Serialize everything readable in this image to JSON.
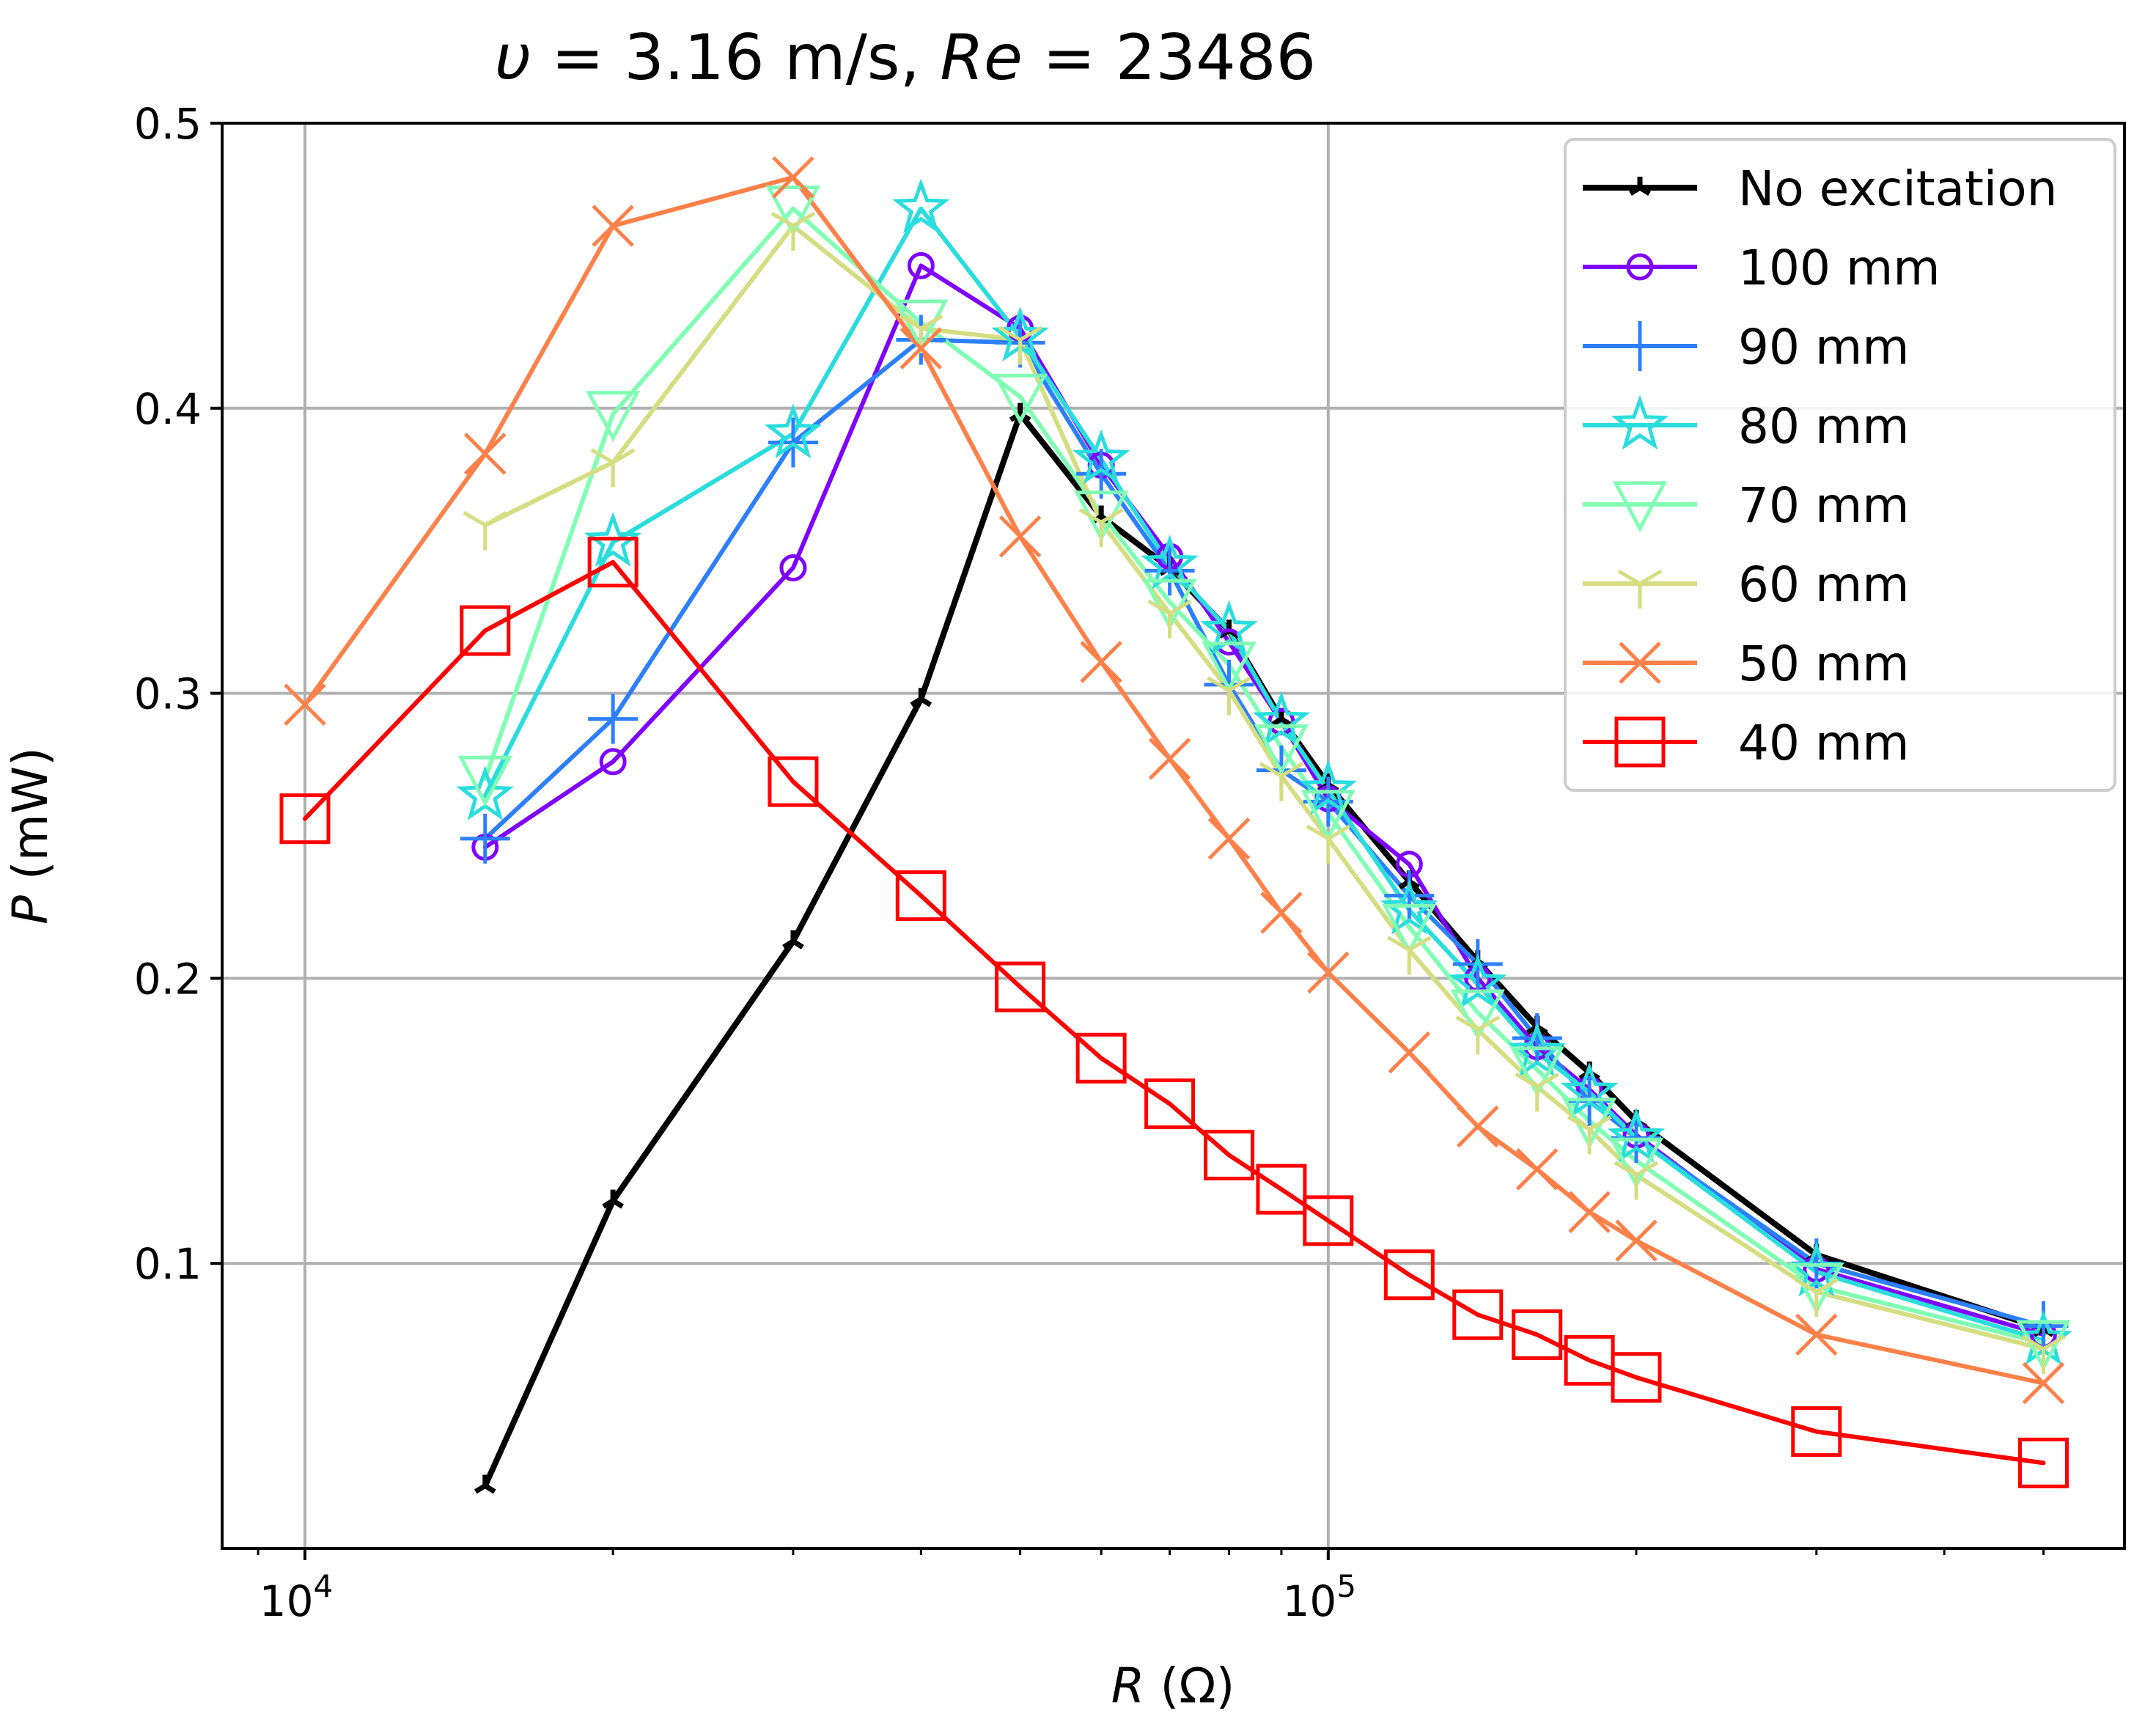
{
  "chart_data": {
    "type": "line",
    "title_parts": [
      {
        "text": "υ",
        "italic": true
      },
      {
        "text": " = 3.16 m/s, ",
        "italic": false
      },
      {
        "text": "Re",
        "italic": true
      },
      {
        "text": " = 23486",
        "italic": false
      }
    ],
    "xlabel": {
      "var": "R",
      "unit": " (Ω)"
    },
    "ylabel": {
      "var": "P",
      "unit": " (mW)"
    },
    "xscale": "log",
    "xlim": [
      8300,
      600000
    ],
    "ylim": [
      0,
      0.5
    ],
    "yticks": [
      {
        "value": 0.1,
        "label": "0.1"
      },
      {
        "value": 0.2,
        "label": "0.2"
      },
      {
        "value": 0.3,
        "label": "0.3"
      },
      {
        "value": 0.4,
        "label": "0.4"
      },
      {
        "value": 0.5,
        "label": "0.5"
      }
    ],
    "xticks_major": [
      {
        "value": 10000,
        "base": "10",
        "exp": "4"
      },
      {
        "value": 100000,
        "base": "10",
        "exp": "5"
      }
    ],
    "xticks_minor": [
      9000,
      20000,
      30000,
      40000,
      50000,
      60000,
      70000,
      80000,
      90000,
      200000,
      300000,
      400000,
      500000
    ],
    "grid": true,
    "legend_position": "top-right",
    "series": [
      {
        "name": "No excitation",
        "color": "#000000",
        "marker": "tri_down",
        "linewidth": "thick",
        "x": [
          15000,
          20000,
          30000,
          40000,
          50000,
          60000,
          70000,
          80000,
          90000,
          100000,
          120000,
          140000,
          160000,
          180000,
          200000,
          300000,
          500000
        ],
        "y": [
          0.022,
          0.122,
          0.213,
          0.298,
          0.398,
          0.362,
          0.344,
          0.322,
          0.291,
          0.268,
          0.234,
          0.206,
          0.183,
          0.167,
          0.15,
          0.103,
          0.077
        ]
      },
      {
        "name": "100 mm",
        "color": "#8000ff",
        "marker": "circle",
        "x": [
          15000,
          20000,
          30000,
          40000,
          50000,
          60000,
          70000,
          80000,
          90000,
          100000,
          120000,
          140000,
          160000,
          180000,
          200000,
          300000,
          500000
        ],
        "y": [
          0.246,
          0.276,
          0.344,
          0.45,
          0.428,
          0.38,
          0.348,
          0.318,
          0.29,
          0.263,
          0.24,
          0.2,
          0.176,
          0.161,
          0.145,
          0.098,
          0.075
        ]
      },
      {
        "name": "90 mm",
        "color": "#2c7fff",
        "marker": "plus",
        "x": [
          15000,
          20000,
          30000,
          40000,
          50000,
          60000,
          70000,
          80000,
          90000,
          100000,
          120000,
          140000,
          160000,
          180000,
          200000,
          300000,
          500000
        ],
        "y": [
          0.249,
          0.291,
          0.388,
          0.424,
          0.423,
          0.377,
          0.343,
          0.303,
          0.273,
          0.262,
          0.229,
          0.205,
          0.179,
          0.157,
          0.144,
          0.1,
          0.078
        ]
      },
      {
        "name": "80 mm",
        "color": "#2adddd",
        "marker": "star",
        "x": [
          15000,
          20000,
          30000,
          40000,
          50000,
          60000,
          70000,
          80000,
          90000,
          100000,
          120000,
          140000,
          160000,
          180000,
          200000,
          300000,
          500000
        ],
        "y": [
          0.264,
          0.353,
          0.391,
          0.47,
          0.425,
          0.382,
          0.345,
          0.322,
          0.29,
          0.266,
          0.224,
          0.198,
          0.174,
          0.16,
          0.144,
          0.097,
          0.073
        ]
      },
      {
        "name": "70 mm",
        "color": "#80ffb4",
        "marker": "tri_down_open",
        "x": [
          15000,
          20000,
          30000,
          40000,
          50000,
          60000,
          70000,
          80000,
          90000,
          100000,
          120000,
          140000,
          160000,
          180000,
          200000,
          300000,
          500000
        ],
        "y": [
          0.27,
          0.398,
          0.47,
          0.43,
          0.404,
          0.363,
          0.332,
          0.31,
          0.281,
          0.258,
          0.218,
          0.188,
          0.168,
          0.15,
          0.136,
          0.092,
          0.072
        ]
      },
      {
        "name": "60 mm",
        "color": "#d4dd80",
        "marker": "tri_up",
        "x": [
          15000,
          20000,
          30000,
          40000,
          50000,
          60000,
          70000,
          80000,
          90000,
          100000,
          120000,
          140000,
          160000,
          180000,
          200000,
          300000,
          500000
        ],
        "y": [
          0.359,
          0.381,
          0.464,
          0.428,
          0.424,
          0.36,
          0.328,
          0.301,
          0.271,
          0.249,
          0.21,
          0.182,
          0.162,
          0.147,
          0.131,
          0.09,
          0.07
        ]
      },
      {
        "name": "50 mm",
        "color": "#ff8048",
        "marker": "x",
        "x": [
          10000,
          15000,
          20000,
          30000,
          40000,
          50000,
          60000,
          70000,
          80000,
          90000,
          100000,
          120000,
          140000,
          160000,
          180000,
          200000,
          300000,
          500000
        ],
        "y": [
          0.296,
          0.384,
          0.464,
          0.481,
          0.421,
          0.355,
          0.311,
          0.277,
          0.249,
          0.223,
          0.202,
          0.174,
          0.148,
          0.133,
          0.118,
          0.108,
          0.075,
          0.058
        ]
      },
      {
        "name": "40 mm",
        "color": "#ff0000",
        "marker": "square",
        "x": [
          10000,
          15000,
          20000,
          30000,
          40000,
          50000,
          60000,
          70000,
          80000,
          90000,
          100000,
          120000,
          140000,
          160000,
          180000,
          200000,
          300000,
          500000
        ],
        "y": [
          0.256,
          0.322,
          0.346,
          0.269,
          0.229,
          0.197,
          0.172,
          0.156,
          0.138,
          0.126,
          0.115,
          0.096,
          0.082,
          0.075,
          0.066,
          0.06,
          0.041,
          0.03
        ]
      }
    ]
  }
}
